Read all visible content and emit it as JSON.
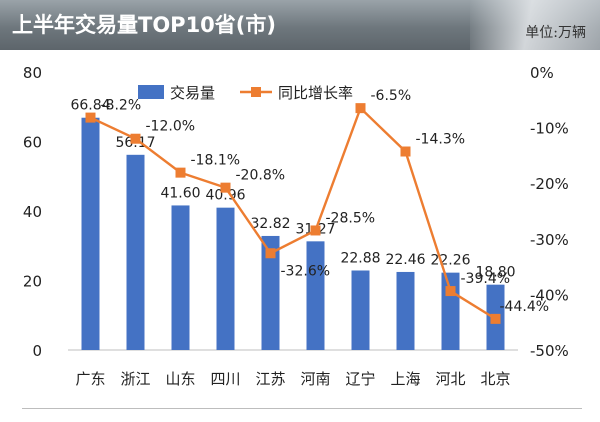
{
  "header": {
    "title": "上半年交易量TOP10省(市)",
    "unit": "单位:万辆"
  },
  "chart_data": {
    "type": "bar",
    "categories": [
      "广东",
      "浙江",
      "山东",
      "四川",
      "江苏",
      "河南",
      "辽宁",
      "上海",
      "河北",
      "北京"
    ],
    "series": [
      {
        "name": "交易量",
        "type": "bar",
        "axis": "left",
        "color": "#4472c4",
        "values": [
          66.84,
          56.17,
          41.6,
          40.96,
          32.82,
          31.27,
          22.88,
          22.46,
          22.26,
          18.8
        ],
        "labels": [
          "66.84",
          "56.17",
          "41.60",
          "40.96",
          "32.82",
          "31.27",
          "22.88",
          "22.46",
          "22.26",
          "18.80"
        ]
      },
      {
        "name": "同比增长率",
        "type": "line",
        "axis": "right",
        "color": "#ed7d31",
        "values": [
          -8.2,
          -12.0,
          -18.1,
          -20.8,
          -32.6,
          -28.5,
          -6.5,
          -14.3,
          -39.4,
          -44.4
        ],
        "labels": [
          "-8.2%",
          "-12.0%",
          "-18.1%",
          "-20.8%",
          "-32.6%",
          "-28.5%",
          "-6.5%",
          "-14.3%",
          "-39.4%",
          "-44.4%"
        ]
      }
    ],
    "y_left": {
      "min": 0,
      "max": 80,
      "ticks": [
        "0",
        "20",
        "40",
        "60",
        "80"
      ]
    },
    "y_right": {
      "min": -50,
      "max": 0,
      "ticks": [
        "0%",
        "-10%",
        "-20%",
        "-30%",
        "-40%",
        "-50%"
      ]
    },
    "grid": false,
    "legend": "top"
  }
}
